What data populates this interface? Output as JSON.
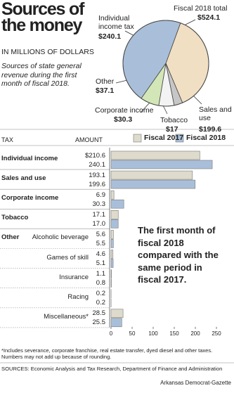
{
  "title": "Sources of the money",
  "units": "IN MILLIONS OF DOLLARS",
  "subtitle": "Sources of state general revenue during the first month of fiscal 2018.",
  "chart_data": [
    {
      "type": "pie",
      "total_label": "Fiscal 2018 total",
      "total": 524.1,
      "total_value_label": "$524.1",
      "categories": [
        "Sales and use",
        "Tobacco",
        "Corporate income",
        "Other",
        "Individual income tax"
      ],
      "values": [
        199.6,
        17,
        30.3,
        37.1,
        240.1
      ],
      "value_labels": [
        "$199.6",
        "$17",
        "$30.3",
        "$37.1",
        "$240.1"
      ],
      "colors": [
        "#f1dfc3",
        "#c6c6c6",
        "#f3f3f3",
        "#d3e6b7",
        "#a9bfd9"
      ]
    },
    {
      "type": "hbar",
      "category_header": "TAX",
      "value_header": "AMOUNT",
      "categories": [
        "Individual income",
        "Sales and use",
        "Corporate income",
        "Tobacco",
        "Alcoholic beverage",
        "Games of skill",
        "Insurance",
        "Racing",
        "Miscellaneous*"
      ],
      "groups": [
        {
          "label": "Other",
          "members": [
            4,
            5,
            6,
            7,
            8
          ]
        }
      ],
      "series": [
        {
          "name": "Fiscal 2017",
          "color": "#dedbcc",
          "values": [
            210.6,
            193.1,
            6.9,
            17.1,
            5.6,
            4.6,
            1.1,
            0.2,
            28.5
          ],
          "value_labels": [
            "$210.6",
            "193.1",
            "6.9",
            "17.1",
            "5.6",
            "4.6",
            "1.1",
            "0.2",
            "28.5"
          ]
        },
        {
          "name": "Fiscal 2018",
          "color": "#a9bfd9",
          "values": [
            240.1,
            199.6,
            30.3,
            17,
            5.5,
            5.1,
            0.8,
            0.2,
            25.5
          ],
          "value_labels": [
            "240.1",
            "199.6",
            "30.3",
            "17.0",
            "5.5",
            "5.1",
            "0.8",
            "0.2",
            "25.5"
          ]
        }
      ],
      "xlim": [
        0,
        250
      ],
      "xticks": [
        0,
        50,
        100,
        150,
        200,
        250
      ],
      "annotation": "The first month of fiscal 2018 compared with the same period in fiscal 2017."
    }
  ],
  "footnote": "*Includes severance, corporate franchise, real estate transfer, dyed diesel and other taxes. Numbers may not add up because of rounding.",
  "source": "SOURCES: Economic Analysis and Tax Research, Department of Finance and Administration",
  "credit": "Arkansas Democrat-Gazette"
}
